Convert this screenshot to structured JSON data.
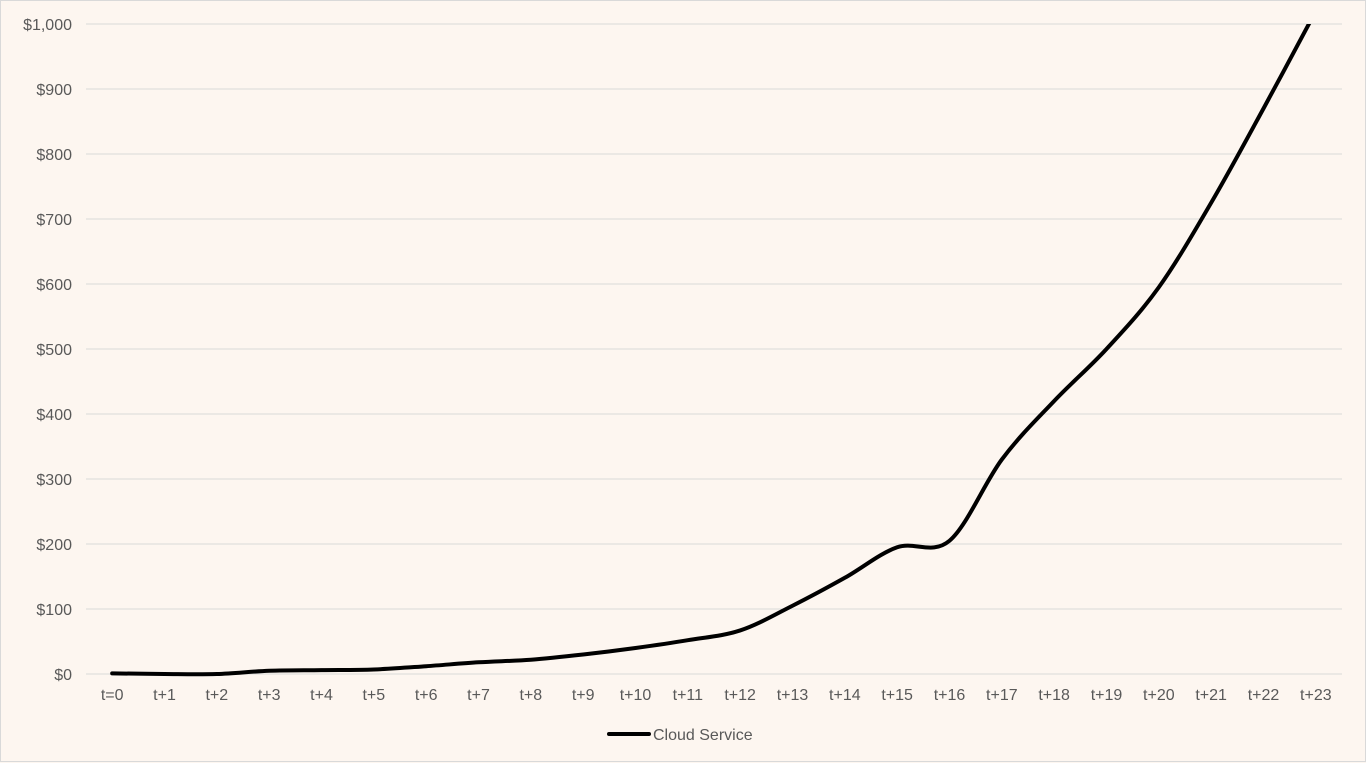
{
  "chart_data": {
    "type": "line",
    "title": "",
    "xlabel": "",
    "ylabel": "",
    "categories": [
      "t=0",
      "t+1",
      "t+2",
      "t+3",
      "t+4",
      "t+5",
      "t+6",
      "t+7",
      "t+8",
      "t+9",
      "t+10",
      "t+11",
      "t+12",
      "t+13",
      "t+14",
      "t+15",
      "t+16",
      "t+17",
      "t+18",
      "t+19",
      "t+20",
      "t+21",
      "t+22",
      "t+23"
    ],
    "series": [
      {
        "name": "Cloud Service",
        "color": "#000000",
        "values": [
          1,
          0,
          0,
          5,
          6,
          7,
          12,
          18,
          22,
          30,
          40,
          52,
          67,
          105,
          148,
          195,
          205,
          330,
          420,
          500,
          595,
          725,
          870,
          1020
        ]
      }
    ],
    "ylim": [
      0,
      1000
    ],
    "yticks": [
      0,
      100,
      200,
      300,
      400,
      500,
      600,
      700,
      800,
      900,
      1000
    ],
    "ytick_labels": [
      "$0",
      "$100",
      "$200",
      "$300",
      "$400",
      "$500",
      "$600",
      "$700",
      "$800",
      "$900",
      "$1,000"
    ],
    "grid": true,
    "legend_position": "bottom"
  },
  "colors": {
    "background": "#fdf6f0",
    "grid": "#d9d9d9",
    "text": "#595959",
    "line": "#000000"
  }
}
